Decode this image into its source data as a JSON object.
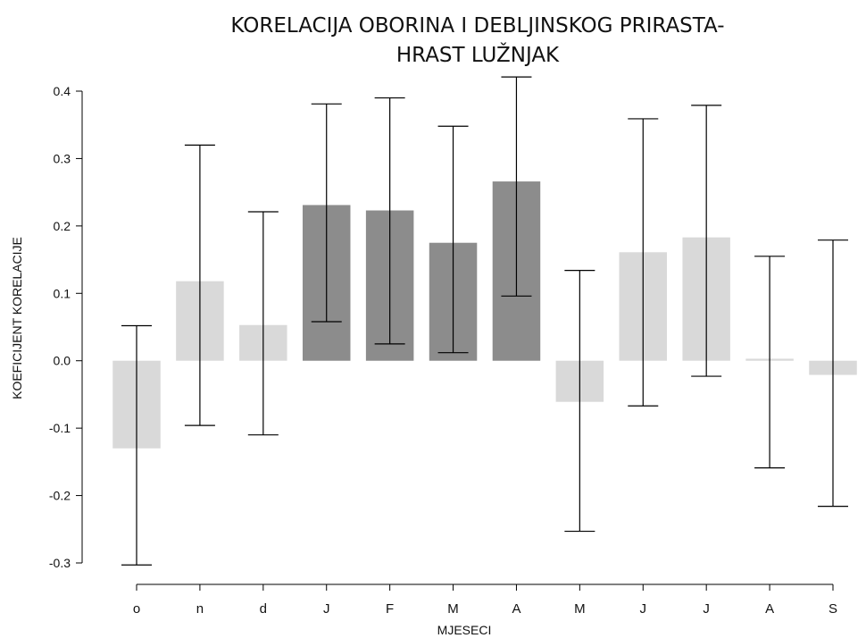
{
  "chart_data": {
    "type": "bar",
    "title_lines": [
      "KORELACIJA OBORINA I DEBLJINSKOG PRIRASTA-",
      "HRAST LUŽNJAK"
    ],
    "xlabel": "MJESECI",
    "ylabel": "KOEFICIJENT KORELACIJE",
    "categories": [
      "o",
      "n",
      "d",
      "J",
      "F",
      "M",
      "A",
      "M",
      "J",
      "J",
      "A",
      "S"
    ],
    "values": [
      -0.13,
      0.118,
      0.053,
      0.231,
      0.223,
      0.175,
      0.266,
      -0.061,
      0.161,
      0.183,
      0.003,
      -0.021
    ],
    "error_lower": [
      -0.303,
      -0.096,
      -0.11,
      0.058,
      0.025,
      0.012,
      0.096,
      -0.253,
      -0.067,
      -0.023,
      -0.159,
      -0.216
    ],
    "error_upper": [
      0.052,
      0.32,
      0.221,
      0.381,
      0.39,
      0.348,
      0.421,
      0.134,
      0.359,
      0.379,
      0.155,
      0.179
    ],
    "significant": [
      false,
      false,
      false,
      true,
      true,
      true,
      true,
      false,
      false,
      false,
      false,
      false
    ],
    "ylim": [
      -0.3,
      0.4
    ],
    "yticks": [
      -0.3,
      -0.2,
      -0.1,
      0.0,
      0.1,
      0.2,
      0.3,
      0.4
    ],
    "ytick_labels": [
      "-0.3",
      "-0.2",
      "-0.1",
      "0.0",
      "0.1",
      "0.2",
      "0.3",
      "0.4"
    ],
    "grid": false,
    "colors": {
      "bar_significant": "#8c8c8c",
      "bar_default": "#d9d9d9",
      "error_bar": "#000000",
      "axis": "#000000"
    }
  }
}
